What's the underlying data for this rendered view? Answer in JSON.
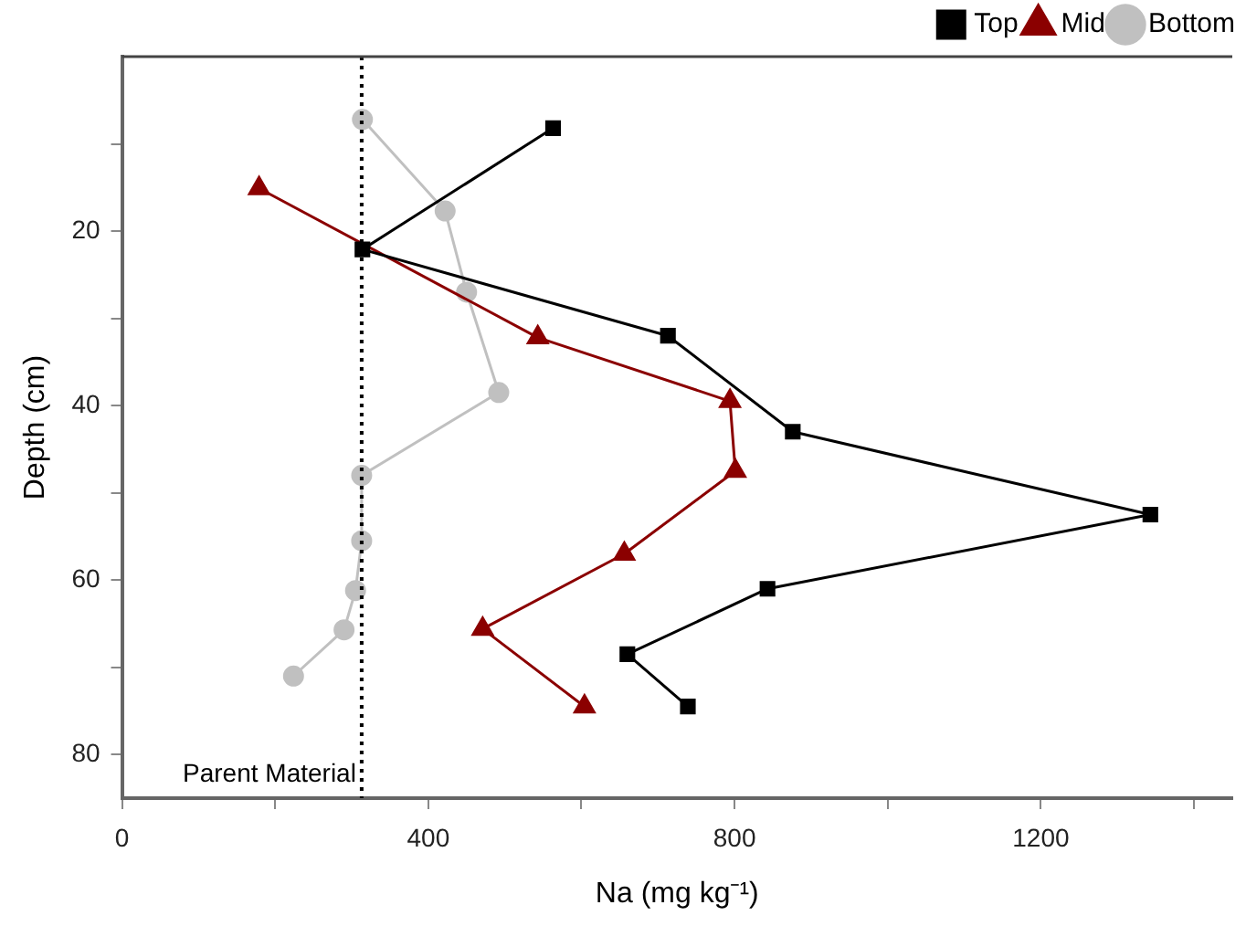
{
  "chart_data": {
    "type": "line",
    "xlabel": "Na (mg kg⁻¹)",
    "ylabel": "Depth (cm)",
    "xlim": [
      0,
      1450
    ],
    "xticks": [
      0,
      {
        "value": 200,
        "label": null
      },
      400,
      {
        "value": 600,
        "label": null
      },
      800,
      {
        "value": 1000,
        "label": null
      },
      1200,
      {
        "value": 1400,
        "label": null
      }
    ],
    "ylim": [
      85,
      0
    ],
    "yticks": [
      {
        "value": 10,
        "label": null
      },
      20,
      {
        "value": 30,
        "label": null
      },
      40,
      {
        "value": 50,
        "label": null
      },
      60,
      {
        "value": 70,
        "label": null
      },
      80
    ],
    "grid": false,
    "legend": "top right",
    "ref_lines": [
      {
        "axis": "x",
        "value": 313,
        "label": "Parent Material",
        "color": "#000000",
        "line_style": "dotted"
      }
    ],
    "series": [
      {
        "name": "Top",
        "color": "#000000",
        "marker": "square",
        "x": [
          563,
          314,
          713,
          876,
          1343,
          843,
          660,
          739
        ],
        "values": [
          8.2,
          22.1,
          32,
          43,
          52.5,
          61,
          68.5,
          74.5
        ]
      },
      {
        "name": "Mid",
        "color": "#8b0000",
        "marker": "triangle",
        "x": [
          179,
          543,
          794,
          801,
          656,
          471,
          604
        ],
        "values": [
          15.1,
          32.2,
          39.5,
          47.5,
          57,
          65.6,
          74.5
        ]
      },
      {
        "name": "Bottom",
        "color": "#c0c0c0",
        "marker": "circle",
        "x": [
          314,
          422,
          450,
          492,
          313,
          313,
          305,
          290,
          224
        ],
        "values": [
          7.2,
          17.7,
          27,
          38.5,
          48,
          55.5,
          61.2,
          65.7,
          71
        ]
      }
    ]
  }
}
